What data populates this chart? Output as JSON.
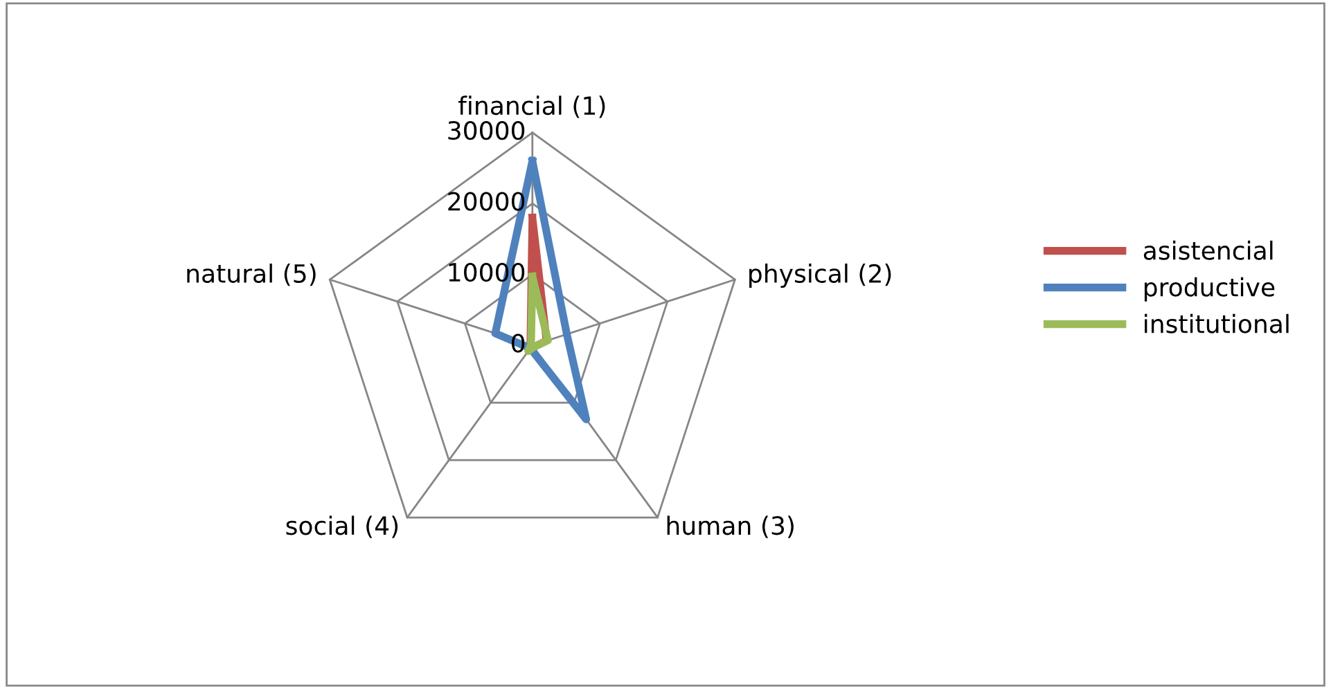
{
  "chart_data": {
    "type": "radar",
    "categories": [
      "financial (1)",
      "physical (2)",
      "human (3)",
      "social (4)",
      "natural (5)"
    ],
    "ylim": [
      0,
      30000
    ],
    "yticks": [
      0,
      10000,
      20000,
      30000
    ],
    "grid": true,
    "legend": "right",
    "marker": "none",
    "line_style": "solid",
    "series": [
      {
        "name": "asistencial",
        "color": "#c0504d",
        "values": [
          18000,
          2100,
          300,
          300,
          300
        ]
      },
      {
        "name": "productive",
        "color": "#4f81bd",
        "values": [
          26000,
          5100,
          12900,
          500,
          5500
        ]
      },
      {
        "name": "institutional",
        "color": "#9bbb59",
        "values": [
          9700,
          2300,
          300,
          1000,
          200
        ]
      }
    ]
  }
}
